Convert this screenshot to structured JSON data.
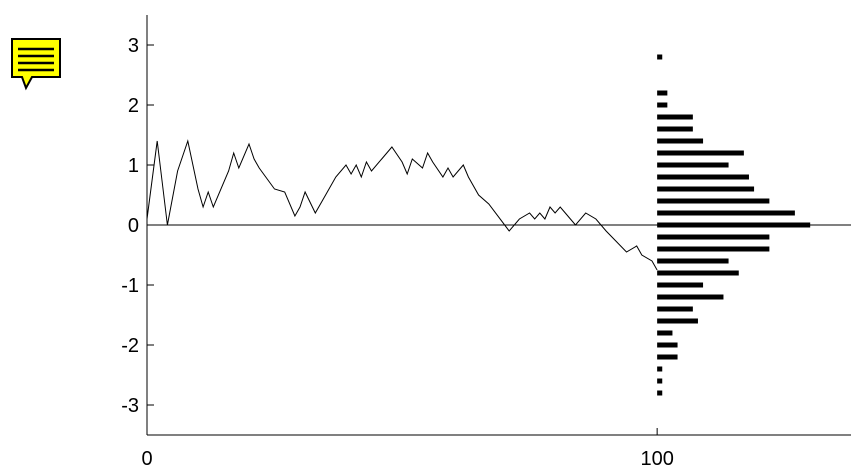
{
  "note_icon": {
    "name": "note-icon",
    "fill": "#ffff00",
    "stroke": "#000000"
  },
  "chart_data": {
    "type": "line",
    "title": "",
    "xlabel": "",
    "ylabel": "",
    "xlim": [
      0,
      138
    ],
    "ylim": [
      -3.5,
      3.5
    ],
    "x_ticks": [
      0,
      100
    ],
    "x_tick_labels": [
      "0",
      "100"
    ],
    "y_ticks": [
      3,
      2,
      1,
      0,
      -1,
      -2,
      -3
    ],
    "y_tick_labels": [
      "3",
      "2",
      "1",
      "0",
      "-1",
      "-2",
      "-3"
    ],
    "grid": false,
    "zero_line": true,
    "line_color": "#000000",
    "series": [
      {
        "x": [
          0,
          2,
          4,
          6,
          8,
          10,
          11,
          12,
          13,
          16,
          17,
          18,
          20,
          21,
          22,
          25,
          27,
          29,
          30,
          31,
          33,
          35,
          37,
          39,
          40,
          41,
          42,
          43,
          44,
          46,
          47,
          48,
          50,
          51,
          52,
          54,
          55,
          56,
          58,
          59,
          60,
          62,
          63,
          65,
          67,
          71,
          73,
          75,
          76,
          77,
          78,
          79,
          80,
          81,
          82,
          83,
          84,
          86,
          88,
          90,
          94,
          96,
          97,
          99,
          100
        ],
        "y": [
          0.1,
          1.4,
          0,
          0.9,
          1.4,
          0.6,
          0.3,
          0.55,
          0.3,
          0.9,
          1.2,
          0.95,
          1.35,
          1.1,
          0.95,
          0.6,
          0.55,
          0.15,
          0.3,
          0.55,
          0.2,
          0.5,
          0.8,
          1.0,
          0.85,
          1.0,
          0.8,
          1.05,
          0.9,
          1.1,
          1.2,
          1.3,
          1.05,
          0.85,
          1.1,
          0.95,
          1.2,
          1.05,
          0.8,
          0.95,
          0.8,
          1.0,
          0.8,
          0.5,
          0.35,
          -0.1,
          0.1,
          0.2,
          0.1,
          0.2,
          0.1,
          0.3,
          0.2,
          0.3,
          0.2,
          0.1,
          0.0,
          0.2,
          0.1,
          -0.1,
          -0.45,
          -0.35,
          -0.5,
          -0.6,
          -0.75
        ]
      }
    ],
    "histogram": {
      "orientation": "horizontal",
      "x_start": 100,
      "bar_color": "#000000",
      "y_centers": [
        2.8,
        2.2,
        2.0,
        1.8,
        1.6,
        1.4,
        1.2,
        1.0,
        0.8,
        0.6,
        0.4,
        0.2,
        0.0,
        -0.2,
        -0.4,
        -0.6,
        -0.8,
        -1.0,
        -1.2,
        -1.4,
        -1.6,
        -1.8,
        -2.0,
        -2.2,
        -2.4,
        -2.6,
        -2.8
      ],
      "lengths": [
        1,
        2,
        2,
        7,
        7,
        9,
        17,
        14,
        18,
        19,
        22,
        27,
        30,
        22,
        22,
        14,
        16,
        9,
        13,
        7,
        8,
        3,
        4,
        4,
        1,
        1,
        1
      ]
    }
  }
}
